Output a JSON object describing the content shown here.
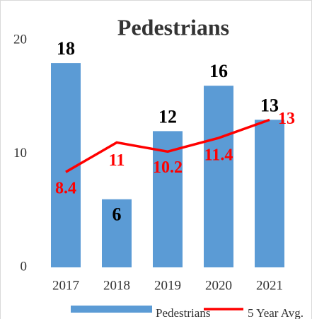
{
  "chart_data": {
    "type": "bar",
    "title": "Pedestrians",
    "categories": [
      "2017",
      "2018",
      "2019",
      "2020",
      "2021"
    ],
    "series": [
      {
        "name": "Pedestrians",
        "color": "#5b9bd5",
        "values": [
          18,
          6,
          12,
          16,
          13
        ]
      },
      {
        "name": "5 Year Avg.",
        "color": "#ff0000",
        "type": "line",
        "values": [
          8.4,
          11,
          10.2,
          11.4,
          13
        ]
      }
    ],
    "ylim": [
      0,
      20
    ],
    "yticks": [
      0,
      10,
      20
    ],
    "grid": false,
    "legend": "bottom"
  }
}
